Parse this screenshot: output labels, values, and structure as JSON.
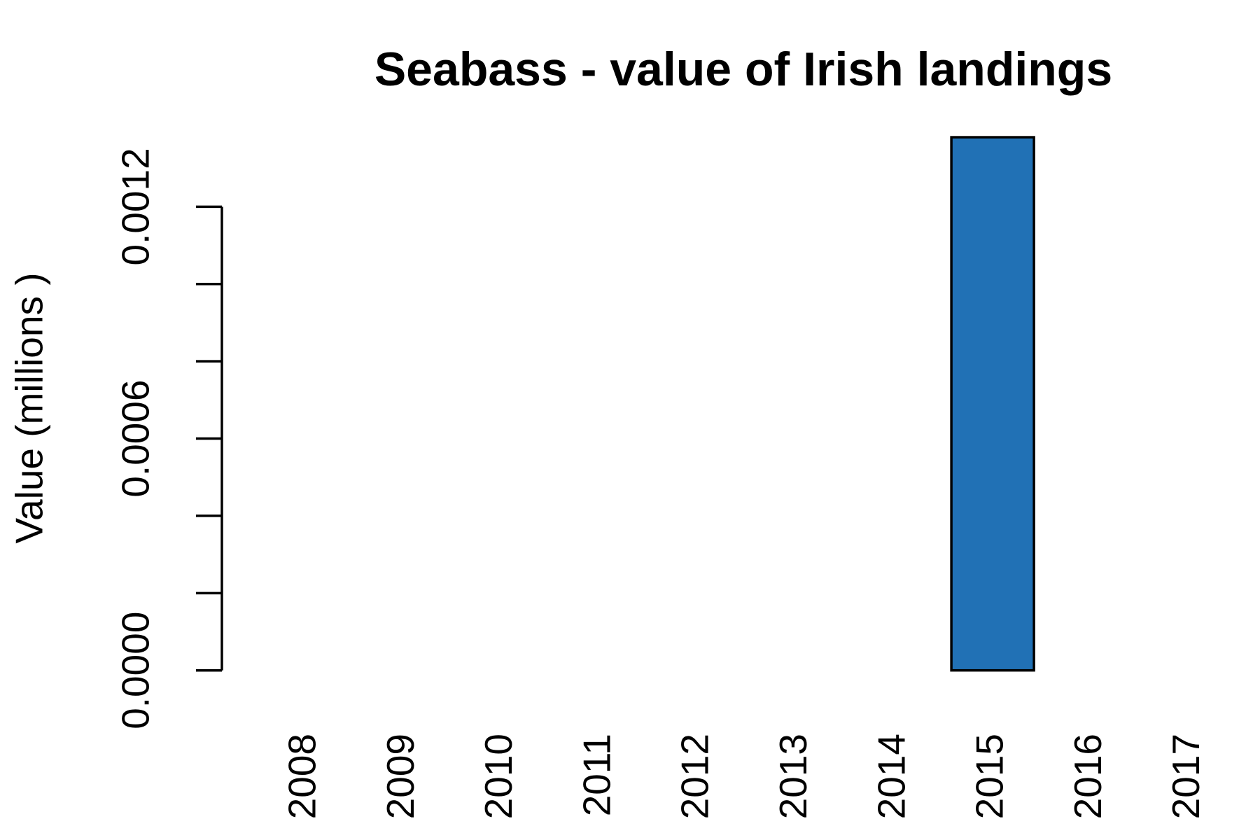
{
  "chart_data": {
    "type": "bar",
    "title": "Seabass - value of Irish landings",
    "y_label": "Value (millions )",
    "categories": [
      "2008",
      "2009",
      "2010",
      "2011",
      "2012",
      "2013",
      "2014",
      "2015",
      "2016",
      "2017"
    ],
    "values": [
      null,
      null,
      null,
      null,
      null,
      null,
      null,
      0.00138,
      null,
      null
    ],
    "color": "#2171b5",
    "ylim": [
      0,
      0.0012
    ],
    "yticks": [
      {
        "value": 0,
        "label": "0.0000"
      },
      {
        "value": 0.0006,
        "label": "0.0006"
      },
      {
        "value": 0.0012,
        "label": "0.0012"
      }
    ],
    "yticks_unlabeled": [
      0.0002,
      0.0004,
      0.0008,
      0.001
    ],
    "grid": false
  }
}
